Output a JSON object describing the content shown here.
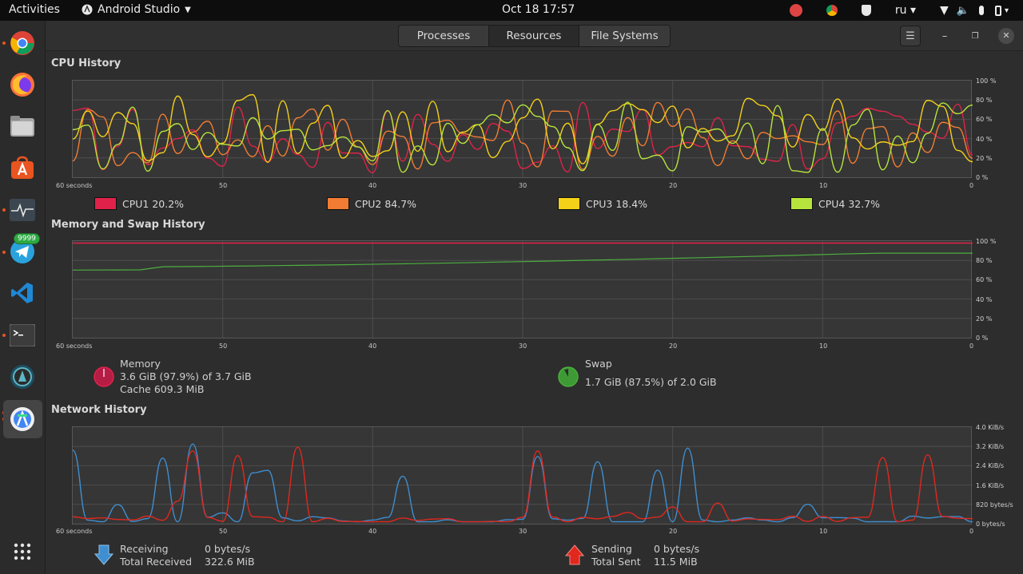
{
  "topbar": {
    "activities": "Activities",
    "app_name": "Android Studio",
    "clock": "Oct 18  17:57",
    "lang": "ru"
  },
  "dock": {
    "items": [
      "chrome-icon",
      "firefox-icon",
      "files-icon",
      "software-center-icon",
      "system-monitor-icon",
      "telegram-icon",
      "vscode-icon",
      "terminal-icon",
      "kdenlive-icon",
      "android-studio-icon",
      "show-apps-icon"
    ],
    "telegram_badge": "9999"
  },
  "tabs": [
    {
      "label": "Processes",
      "active": false
    },
    {
      "label": "Resources",
      "active": true
    },
    {
      "label": "File Systems",
      "active": false
    }
  ],
  "cpu": {
    "title": "CPU History",
    "y_ticks": [
      "100 %",
      "80 %",
      "60 %",
      "40 %",
      "20 %",
      "0 %"
    ],
    "x_ticks": [
      "60 seconds",
      "50",
      "40",
      "30",
      "20",
      "10",
      "0"
    ],
    "legend": [
      {
        "name": "CPU1",
        "value": "20.2%",
        "color": "#e0224a"
      },
      {
        "name": "CPU2",
        "value": "84.7%",
        "color": "#f17c32"
      },
      {
        "name": "CPU3",
        "value": "18.4%",
        "color": "#f4d118"
      },
      {
        "name": "CPU4",
        "value": "32.7%",
        "color": "#b7e43c"
      }
    ]
  },
  "memory": {
    "title": "Memory and Swap History",
    "y_ticks": [
      "100 %",
      "80 %",
      "60 %",
      "40 %",
      "20 %",
      "0 %"
    ],
    "x_ticks": [
      "60 seconds",
      "50",
      "40",
      "30",
      "20",
      "10",
      "0"
    ],
    "mem_label": "Memory",
    "mem_value": "3.6 GiB (97.9%) of 3.7 GiB",
    "mem_cache": "Cache 609.3 MiB",
    "mem_color": "#e0224a",
    "mem_fraction": 0.979,
    "swap_label": "Swap",
    "swap_value": "1.7 GiB (87.5%) of 2.0 GiB",
    "swap_color": "#4caf3f",
    "swap_fraction": 0.875
  },
  "network": {
    "title": "Network History",
    "y_ticks": [
      "4.0 KiB/s",
      "3.2 KiB/s",
      "2.4 KiB/s",
      "1.6 KiB/s",
      "820 bytes/s",
      "0 bytes/s"
    ],
    "x_ticks": [
      "60 seconds",
      "50",
      "40",
      "30",
      "20",
      "10",
      "0"
    ],
    "receiving_label": "Receiving",
    "receiving_value": "0 bytes/s",
    "total_received_label": "Total Received",
    "total_received_value": "322.6 MiB",
    "receiving_color": "#3e8ed0",
    "sending_label": "Sending",
    "sending_value": "0 bytes/s",
    "total_sent_label": "Total Sent",
    "total_sent_value": "11.5 MiB",
    "sending_color": "#e0281e"
  }
}
